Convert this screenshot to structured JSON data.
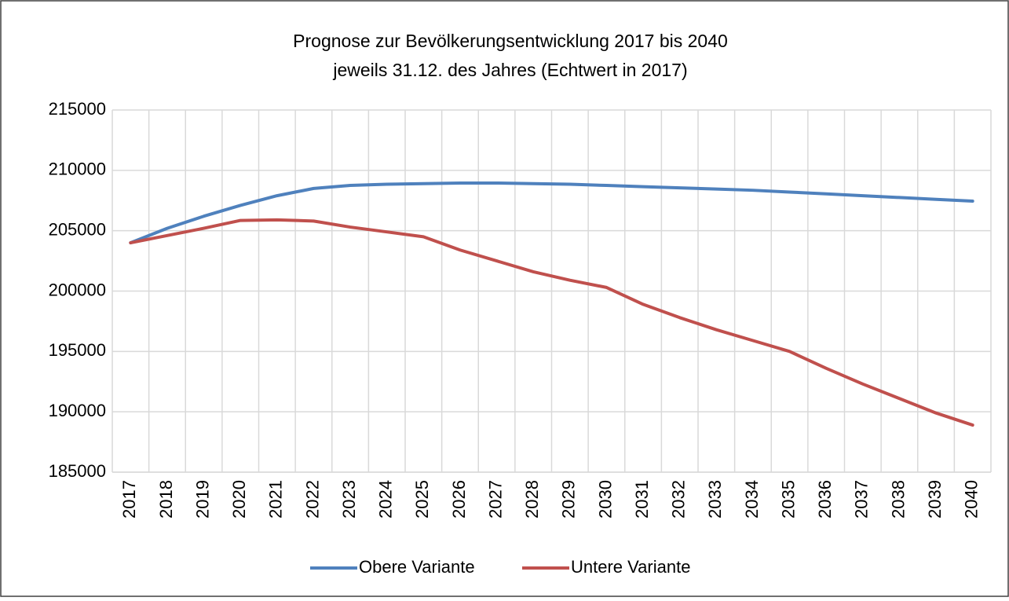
{
  "chart_data": {
    "type": "line",
    "title": "Prognose zur Bevölkerungsentwicklung 2017 bis 2040",
    "subtitle": "jeweils 31.12. des Jahres (Echtwert in 2017)",
    "categories": [
      "2017",
      "2018",
      "2019",
      "2020",
      "2021",
      "2022",
      "2023",
      "2024",
      "2025",
      "2026",
      "2027",
      "2028",
      "2029",
      "2030",
      "2031",
      "2032",
      "2033",
      "2034",
      "2035",
      "2036",
      "2037",
      "2038",
      "2039",
      "2040"
    ],
    "series": [
      {
        "name": "Obere Variante",
        "color": "#4f81bd",
        "values": [
          204000,
          205200,
          206200,
          207100,
          207900,
          208500,
          208750,
          208850,
          208900,
          208950,
          208950,
          208900,
          208850,
          208750,
          208650,
          208550,
          208450,
          208350,
          208200,
          208050,
          207900,
          207750,
          207600,
          207450
        ]
      },
      {
        "name": "Untere Variante",
        "color": "#c0504d",
        "values": [
          204000,
          204600,
          205200,
          205850,
          205900,
          205800,
          205300,
          204900,
          204500,
          203400,
          202500,
          201600,
          200900,
          200300,
          198900,
          197800,
          196800,
          195900,
          195000,
          193600,
          192300,
          191100,
          189900,
          188900
        ]
      }
    ],
    "ylim": [
      185000,
      215000
    ],
    "yticks": [
      185000,
      190000,
      195000,
      200000,
      205000,
      210000,
      215000
    ],
    "grid": true,
    "legend": "bottom"
  }
}
